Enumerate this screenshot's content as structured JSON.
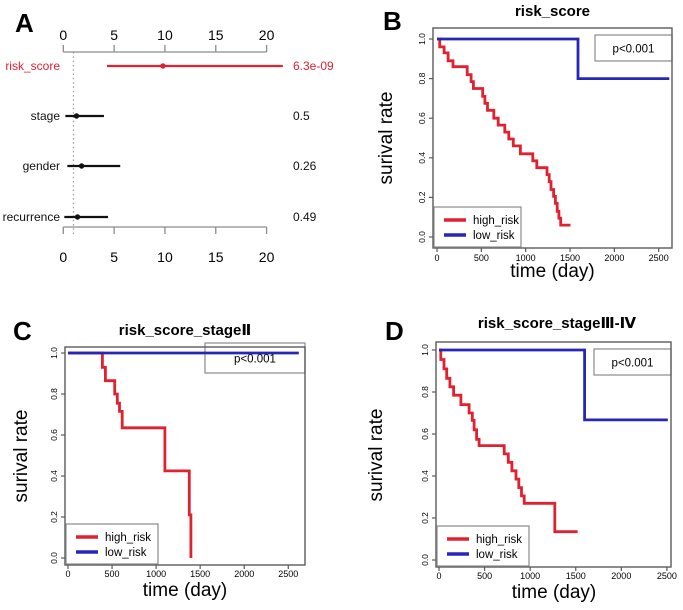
{
  "colors": {
    "high_risk": "#e02130",
    "low_risk": "#2626b8",
    "text": "#000000",
    "forest_black": "#111111",
    "axis": "#5a5a5a",
    "forest_axis": "#8c8c8c",
    "box_border": "#8a8a8a",
    "reference_line": "#9a9a9a"
  },
  "chart_data": [
    {
      "id": "a",
      "panel_letter": "A",
      "type": "scatter",
      "subtype": "forest_plot",
      "title": "",
      "xlabel": "",
      "ylabel": "",
      "axis_ticks": [
        0,
        5,
        10,
        15,
        20
      ],
      "xlim": [
        0,
        21.8
      ],
      "reference_line_x": 1,
      "rows": [
        {
          "label": "risk_score",
          "estimate": 9.8,
          "ci_low": 4.3,
          "ci_high": 21.6,
          "p_value": "6.3e-09",
          "highlight": true
        },
        {
          "label": "stage",
          "estimate": 1.3,
          "ci_low": 0.2,
          "ci_high": 4.0,
          "p_value": "0.5",
          "highlight": false
        },
        {
          "label": "gender",
          "estimate": 1.8,
          "ci_low": 0.4,
          "ci_high": 5.6,
          "p_value": "0.26",
          "highlight": false
        },
        {
          "label": "recurrence",
          "estimate": 1.4,
          "ci_low": 0.1,
          "ci_high": 4.4,
          "p_value": "0.49",
          "highlight": false
        }
      ]
    },
    {
      "id": "b",
      "panel_letter": "B",
      "type": "line",
      "subtype": "kaplan_meier_step",
      "title": "risk_score",
      "xlabel": "time (day)",
      "ylabel": "surival rate",
      "xticks": [
        0,
        500,
        1000,
        1500,
        2000,
        2500
      ],
      "yticks": [
        "0.0",
        "0.2",
        "0.4",
        "0.6",
        "0.8",
        "1.0"
      ],
      "xlim": [
        0,
        2650
      ],
      "ylim": [
        0,
        1
      ],
      "p_label": "p<0.001",
      "legend": {
        "position": "bottom-left",
        "entries": [
          "high_risk",
          "low_risk"
        ]
      },
      "series": [
        {
          "name": "high_risk",
          "color_key": "high_risk",
          "start": [
            0,
            1.0
          ],
          "end_time": 1505,
          "steps": [
            [
              30,
              0.96
            ],
            [
              80,
              0.93
            ],
            [
              125,
              0.89
            ],
            [
              180,
              0.86
            ],
            [
              340,
              0.82
            ],
            [
              385,
              0.785
            ],
            [
              410,
              0.75
            ],
            [
              515,
              0.71
            ],
            [
              540,
              0.675
            ],
            [
              570,
              0.64
            ],
            [
              640,
              0.6
            ],
            [
              690,
              0.565
            ],
            [
              765,
              0.53
            ],
            [
              810,
              0.495
            ],
            [
              860,
              0.46
            ],
            [
              940,
              0.42
            ],
            [
              1080,
              0.385
            ],
            [
              1125,
              0.35
            ],
            [
              1240,
              0.315
            ],
            [
              1265,
              0.28
            ],
            [
              1285,
              0.24
            ],
            [
              1315,
              0.205
            ],
            [
              1335,
              0.17
            ],
            [
              1355,
              0.13
            ],
            [
              1375,
              0.095
            ],
            [
              1395,
              0.06
            ]
          ]
        },
        {
          "name": "low_risk",
          "color_key": "low_risk",
          "start": [
            0,
            1.0
          ],
          "end_time": 2620,
          "steps": [
            [
              1590,
              0.8
            ]
          ]
        }
      ]
    },
    {
      "id": "c",
      "panel_letter": "C",
      "type": "line",
      "subtype": "kaplan_meier_step",
      "title": "risk_score_stageⅡ",
      "xlabel": "time (day)",
      "ylabel": "surival rate",
      "xticks": [
        0,
        500,
        1000,
        1500,
        2000,
        2500
      ],
      "yticks": [
        "0.0",
        "0.2",
        "0.4",
        "0.6",
        "0.8",
        "1.0"
      ],
      "xlim": [
        0,
        2690
      ],
      "ylim": [
        0,
        1
      ],
      "p_label": "p<0.001",
      "legend": {
        "position": "bottom-left",
        "entries": [
          "high_risk",
          "low_risk"
        ]
      },
      "series": [
        {
          "name": "high_risk",
          "color_key": "high_risk",
          "start": [
            0,
            1.0
          ],
          "end_time": 1395,
          "steps": [
            [
              390,
              0.93
            ],
            [
              425,
              0.865
            ],
            [
              530,
              0.8
            ],
            [
              560,
              0.755
            ],
            [
              585,
              0.715
            ],
            [
              615,
              0.635
            ],
            [
              1100,
              0.425
            ],
            [
              1377,
              0.21
            ],
            [
              1395,
              0.0
            ]
          ]
        },
        {
          "name": "low_risk",
          "color_key": "low_risk",
          "start": [
            0,
            1.0
          ],
          "end_time": 2620,
          "steps": []
        }
      ]
    },
    {
      "id": "d",
      "panel_letter": "D",
      "type": "line",
      "subtype": "kaplan_meier_step",
      "title": "risk_score_stageⅢ-Ⅳ",
      "xlabel": "time (day)",
      "ylabel": "surival rate",
      "xticks": [
        0,
        500,
        1000,
        1500,
        2000,
        2500
      ],
      "yticks": [
        "0.0",
        "0.2",
        "0.4",
        "0.6",
        "0.8",
        "1.0"
      ],
      "xlim": [
        0,
        2545
      ],
      "ylim": [
        0,
        1
      ],
      "p_label": "p<0.001",
      "legend": {
        "position": "bottom-left",
        "entries": [
          "high_risk",
          "low_risk"
        ]
      },
      "series": [
        {
          "name": "high_risk",
          "color_key": "high_risk",
          "start": [
            0,
            1.0
          ],
          "end_time": 1520,
          "steps": [
            [
              20,
              0.955
            ],
            [
              55,
              0.91
            ],
            [
              85,
              0.865
            ],
            [
              120,
              0.825
            ],
            [
              160,
              0.785
            ],
            [
              240,
              0.74
            ],
            [
              330,
              0.7
            ],
            [
              365,
              0.665
            ],
            [
              385,
              0.62
            ],
            [
              412,
              0.575
            ],
            [
              440,
              0.545
            ],
            [
              715,
              0.505
            ],
            [
              760,
              0.465
            ],
            [
              800,
              0.425
            ],
            [
              845,
              0.385
            ],
            [
              875,
              0.345
            ],
            [
              905,
              0.305
            ],
            [
              935,
              0.27
            ],
            [
              1270,
              0.135
            ]
          ]
        },
        {
          "name": "low_risk",
          "color_key": "low_risk",
          "start": [
            0,
            1.0
          ],
          "end_time": 2510,
          "steps": [
            [
              1597,
              0.667
            ]
          ]
        }
      ]
    }
  ]
}
